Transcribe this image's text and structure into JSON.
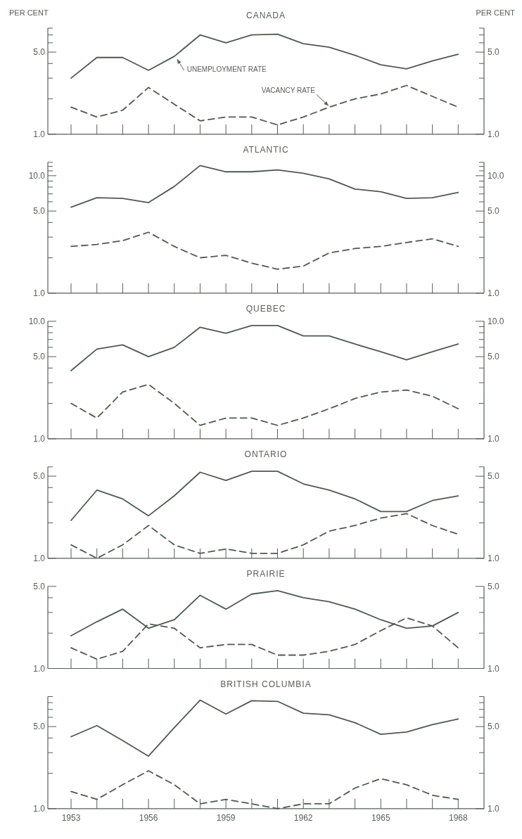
{
  "chart_data": [
    {
      "type": "line",
      "title": "CANADA",
      "ylabel": "PER CENT",
      "y2label": "PER CENT",
      "log": "y",
      "tick_labels": "y",
      "x": [
        1953,
        1954,
        1955,
        1956,
        1957,
        1958,
        1959,
        1960,
        1961,
        1962,
        1963,
        1964,
        1965,
        1966,
        1967,
        1968
      ],
      "xlim": [
        1952.1,
        1969
      ],
      "xticks": [
        {
          "value": 1953,
          "label": null
        },
        {
          "value": 1954,
          "label": null
        },
        {
          "value": 1955,
          "label": null
        },
        {
          "value": 1956,
          "label": null
        },
        {
          "value": 1957,
          "label": null
        },
        {
          "value": 1958,
          "label": null
        },
        {
          "value": 1959,
          "label": null
        },
        {
          "value": 1960,
          "label": null
        },
        {
          "value": 1961,
          "label": null
        },
        {
          "value": 1962,
          "label": null
        },
        {
          "value": 1963,
          "label": null
        },
        {
          "value": 1964,
          "label": null
        },
        {
          "value": 1965,
          "label": null
        },
        {
          "value": 1966,
          "label": null
        },
        {
          "value": 1967,
          "label": null
        },
        {
          "value": 1968,
          "label": null
        }
      ],
      "ylim": [
        1,
        8
      ],
      "yticks": [
        {
          "value": 1,
          "label": "1.0"
        },
        {
          "value": 2,
          "label": null
        },
        {
          "value": 3,
          "label": null
        },
        {
          "value": 4,
          "label": null
        },
        {
          "value": 5,
          "label": "5.0"
        },
        {
          "value": 6,
          "label": null
        },
        {
          "value": 7,
          "label": null
        },
        {
          "value": 8,
          "label": null
        }
      ],
      "series": [
        {
          "color": "#4d5a4f",
          "line_style": "solid",
          "values": [
            3.0,
            4.5,
            4.5,
            3.5,
            4.6,
            7.0,
            6.0,
            7.0,
            7.1,
            5.9,
            5.5,
            4.7,
            3.9,
            3.6,
            4.2,
            4.8
          ]
        },
        {
          "color": "#4d5a4f",
          "line_style": "dashed",
          "values": [
            1.7,
            1.4,
            1.6,
            2.5,
            1.8,
            1.3,
            1.4,
            1.4,
            1.2,
            1.4,
            1.7,
            2.0,
            2.2,
            2.6,
            2.1,
            1.7
          ]
        }
      ],
      "annotations": [
        {
          "text": "UNEMPLOYMENT RATE",
          "x": 1957,
          "y": 4.6
        },
        {
          "text": "VACANCY RATE",
          "x": 1963,
          "y": 1.7
        }
      ]
    },
    {
      "type": "line",
      "title": "ATLANTIC",
      "log": "y",
      "tick_labels": "y",
      "x": [
        1953,
        1954,
        1955,
        1956,
        1957,
        1958,
        1959,
        1960,
        1961,
        1962,
        1963,
        1964,
        1965,
        1966,
        1967,
        1968
      ],
      "xlim": [
        1952.1,
        1969
      ],
      "xticks": [
        {
          "value": 1953,
          "label": null
        },
        {
          "value": 1954,
          "label": null
        },
        {
          "value": 1955,
          "label": null
        },
        {
          "value": 1956,
          "label": null
        },
        {
          "value": 1957,
          "label": null
        },
        {
          "value": 1958,
          "label": null
        },
        {
          "value": 1959,
          "label": null
        },
        {
          "value": 1960,
          "label": null
        },
        {
          "value": 1961,
          "label": null
        },
        {
          "value": 1962,
          "label": null
        },
        {
          "value": 1963,
          "label": null
        },
        {
          "value": 1964,
          "label": null
        },
        {
          "value": 1965,
          "label": null
        },
        {
          "value": 1966,
          "label": null
        },
        {
          "value": 1967,
          "label": null
        },
        {
          "value": 1968,
          "label": null
        }
      ],
      "ylim": [
        1,
        13
      ],
      "yticks": [
        {
          "value": 1,
          "label": "1.0"
        },
        {
          "value": 2,
          "label": null
        },
        {
          "value": 3,
          "label": null
        },
        {
          "value": 4,
          "label": null
        },
        {
          "value": 5,
          "label": "5.0"
        },
        {
          "value": 6,
          "label": null
        },
        {
          "value": 7,
          "label": null
        },
        {
          "value": 8,
          "label": null
        },
        {
          "value": 9,
          "label": null
        },
        {
          "value": 10,
          "label": "10.0"
        },
        {
          "value": 11,
          "label": null
        },
        {
          "value": 12,
          "label": null
        },
        {
          "value": 13,
          "label": null
        }
      ],
      "series": [
        {
          "color": "#4d5a4f",
          "line_style": "solid",
          "values": [
            5.4,
            6.5,
            6.4,
            5.9,
            8.1,
            12.2,
            10.8,
            10.8,
            11.2,
            10.5,
            9.4,
            7.7,
            7.3,
            6.4,
            6.5,
            7.2
          ]
        },
        {
          "color": "#4d5a4f",
          "line_style": "dashed",
          "values": [
            2.5,
            2.6,
            2.8,
            3.3,
            2.5,
            2.0,
            2.1,
            1.8,
            1.6,
            1.7,
            2.2,
            2.4,
            2.5,
            2.7,
            2.9,
            2.5
          ]
        }
      ]
    },
    {
      "type": "line",
      "title": "QUEBEC",
      "log": "y",
      "tick_labels": "y",
      "x": [
        1953,
        1954,
        1955,
        1956,
        1957,
        1958,
        1959,
        1960,
        1961,
        1962,
        1963,
        1964,
        1965,
        1966,
        1967,
        1968
      ],
      "xlim": [
        1952.1,
        1969
      ],
      "xticks": [
        {
          "value": 1953,
          "label": null
        },
        {
          "value": 1954,
          "label": null
        },
        {
          "value": 1955,
          "label": null
        },
        {
          "value": 1956,
          "label": null
        },
        {
          "value": 1957,
          "label": null
        },
        {
          "value": 1958,
          "label": null
        },
        {
          "value": 1959,
          "label": null
        },
        {
          "value": 1960,
          "label": null
        },
        {
          "value": 1961,
          "label": null
        },
        {
          "value": 1962,
          "label": null
        },
        {
          "value": 1963,
          "label": null
        },
        {
          "value": 1964,
          "label": null
        },
        {
          "value": 1965,
          "label": null
        },
        {
          "value": 1966,
          "label": null
        },
        {
          "value": 1967,
          "label": null
        },
        {
          "value": 1968,
          "label": null
        }
      ],
      "ylim": [
        1,
        10
      ],
      "yticks": [
        {
          "value": 1,
          "label": "1.0"
        },
        {
          "value": 2,
          "label": null
        },
        {
          "value": 3,
          "label": null
        },
        {
          "value": 4,
          "label": null
        },
        {
          "value": 5,
          "label": "5.0"
        },
        {
          "value": 6,
          "label": null
        },
        {
          "value": 7,
          "label": null
        },
        {
          "value": 8,
          "label": null
        },
        {
          "value": 9,
          "label": null
        },
        {
          "value": 10,
          "label": "10.0"
        }
      ],
      "series": [
        {
          "color": "#4d5a4f",
          "line_style": "solid",
          "values": [
            3.8,
            5.8,
            6.3,
            5.0,
            6.0,
            8.9,
            7.9,
            9.2,
            9.2,
            7.5,
            7.5,
            6.4,
            5.5,
            4.7,
            5.5,
            6.4
          ]
        },
        {
          "color": "#4d5a4f",
          "line_style": "dashed",
          "values": [
            2.0,
            1.5,
            2.5,
            2.9,
            2.0,
            1.3,
            1.5,
            1.5,
            1.3,
            1.5,
            1.8,
            2.2,
            2.5,
            2.6,
            2.3,
            1.8
          ]
        }
      ]
    },
    {
      "type": "line",
      "title": "ONTARIO",
      "log": "y",
      "tick_labels": "y",
      "x": [
        1953,
        1954,
        1955,
        1956,
        1957,
        1958,
        1959,
        1960,
        1961,
        1962,
        1963,
        1964,
        1965,
        1966,
        1967,
        1968
      ],
      "xlim": [
        1952.1,
        1969
      ],
      "xticks": [
        {
          "value": 1953,
          "label": null
        },
        {
          "value": 1954,
          "label": null
        },
        {
          "value": 1955,
          "label": null
        },
        {
          "value": 1956,
          "label": null
        },
        {
          "value": 1957,
          "label": null
        },
        {
          "value": 1958,
          "label": null
        },
        {
          "value": 1959,
          "label": null
        },
        {
          "value": 1960,
          "label": null
        },
        {
          "value": 1961,
          "label": null
        },
        {
          "value": 1962,
          "label": null
        },
        {
          "value": 1963,
          "label": null
        },
        {
          "value": 1964,
          "label": null
        },
        {
          "value": 1965,
          "label": null
        },
        {
          "value": 1966,
          "label": null
        },
        {
          "value": 1967,
          "label": null
        },
        {
          "value": 1968,
          "label": null
        }
      ],
      "ylim": [
        1,
        6
      ],
      "yticks": [
        {
          "value": 1,
          "label": "1.0"
        },
        {
          "value": 2,
          "label": null
        },
        {
          "value": 3,
          "label": null
        },
        {
          "value": 4,
          "label": null
        },
        {
          "value": 5,
          "label": "5.0"
        },
        {
          "value": 6,
          "label": null
        }
      ],
      "series": [
        {
          "color": "#4d5a4f",
          "line_style": "solid",
          "values": [
            2.1,
            3.8,
            3.2,
            2.3,
            3.4,
            5.4,
            4.6,
            5.5,
            5.5,
            4.3,
            3.8,
            3.2,
            2.5,
            2.5,
            3.1,
            3.4
          ]
        },
        {
          "color": "#4d5a4f",
          "line_style": "dashed",
          "values": [
            1.3,
            1.0,
            1.3,
            1.9,
            1.3,
            1.1,
            1.2,
            1.1,
            1.1,
            1.3,
            1.7,
            1.9,
            2.2,
            2.4,
            1.9,
            1.6
          ]
        }
      ]
    },
    {
      "type": "line",
      "title": "PRAIRIE",
      "log": "y",
      "tick_labels": "y",
      "x": [
        1953,
        1954,
        1955,
        1956,
        1957,
        1958,
        1959,
        1960,
        1961,
        1962,
        1963,
        1964,
        1965,
        1966,
        1967,
        1968
      ],
      "xlim": [
        1952.1,
        1969
      ],
      "xticks": [
        {
          "value": 1953,
          "label": null
        },
        {
          "value": 1954,
          "label": null
        },
        {
          "value": 1955,
          "label": null
        },
        {
          "value": 1956,
          "label": null
        },
        {
          "value": 1957,
          "label": null
        },
        {
          "value": 1958,
          "label": null
        },
        {
          "value": 1959,
          "label": null
        },
        {
          "value": 1960,
          "label": null
        },
        {
          "value": 1961,
          "label": null
        },
        {
          "value": 1962,
          "label": null
        },
        {
          "value": 1963,
          "label": null
        },
        {
          "value": 1964,
          "label": null
        },
        {
          "value": 1965,
          "label": null
        },
        {
          "value": 1966,
          "label": null
        },
        {
          "value": 1967,
          "label": null
        },
        {
          "value": 1968,
          "label": null
        }
      ],
      "ylim": [
        1,
        5
      ],
      "yticks": [
        {
          "value": 1,
          "label": "1.0"
        },
        {
          "value": 2,
          "label": null
        },
        {
          "value": 3,
          "label": null
        },
        {
          "value": 4,
          "label": null
        },
        {
          "value": 5,
          "label": "5.0"
        }
      ],
      "series": [
        {
          "color": "#4d5a4f",
          "line_style": "solid",
          "values": [
            1.9,
            2.5,
            3.2,
            2.2,
            2.6,
            4.2,
            3.2,
            4.3,
            4.6,
            4.0,
            3.7,
            3.2,
            2.6,
            2.2,
            2.3,
            3.0
          ]
        },
        {
          "color": "#4d5a4f",
          "line_style": "dashed",
          "values": [
            1.5,
            1.2,
            1.4,
            2.4,
            2.2,
            1.5,
            1.6,
            1.6,
            1.3,
            1.3,
            1.4,
            1.6,
            2.1,
            2.7,
            2.3,
            1.5
          ]
        }
      ]
    },
    {
      "type": "line",
      "title": "BRITISH COLUMBIA",
      "log": "y",
      "x": [
        1953,
        1954,
        1955,
        1956,
        1957,
        1958,
        1959,
        1960,
        1961,
        1962,
        1963,
        1964,
        1965,
        1966,
        1967,
        1968
      ],
      "xlim": [
        1952.1,
        1969
      ],
      "xticks": [
        1953,
        {
          "value": 1954,
          "label": null
        },
        {
          "value": 1955,
          "label": null
        },
        1956,
        {
          "value": 1957,
          "label": null
        },
        {
          "value": 1958,
          "label": null
        },
        1959,
        {
          "value": 1960,
          "label": null
        },
        {
          "value": 1961,
          "label": null
        },
        1962,
        {
          "value": 1963,
          "label": null
        },
        {
          "value": 1964,
          "label": null
        },
        1965,
        {
          "value": 1966,
          "label": null
        },
        {
          "value": 1967,
          "label": null
        },
        1968
      ],
      "ylim": [
        1,
        9
      ],
      "yticks": [
        {
          "value": 1,
          "label": "1.0"
        },
        {
          "value": 2,
          "label": null
        },
        {
          "value": 3,
          "label": null
        },
        {
          "value": 4,
          "label": null
        },
        {
          "value": 5,
          "label": "5.0"
        },
        {
          "value": 6,
          "label": null
        },
        {
          "value": 7,
          "label": null
        },
        {
          "value": 8,
          "label": null
        },
        {
          "value": 9,
          "label": null
        }
      ],
      "series": [
        {
          "color": "#4d5a4f",
          "line_style": "solid",
          "values": [
            4.1,
            5.1,
            3.8,
            2.8,
            4.9,
            8.4,
            6.4,
            8.3,
            8.2,
            6.5,
            6.3,
            5.4,
            4.3,
            4.5,
            5.2,
            5.8
          ]
        },
        {
          "color": "#4d5a4f",
          "line_style": "dashed",
          "values": [
            1.4,
            1.2,
            1.6,
            2.1,
            1.6,
            1.1,
            1.2,
            1.1,
            1.0,
            1.1,
            1.1,
            1.5,
            1.8,
            1.6,
            1.3,
            1.2
          ]
        }
      ]
    }
  ]
}
